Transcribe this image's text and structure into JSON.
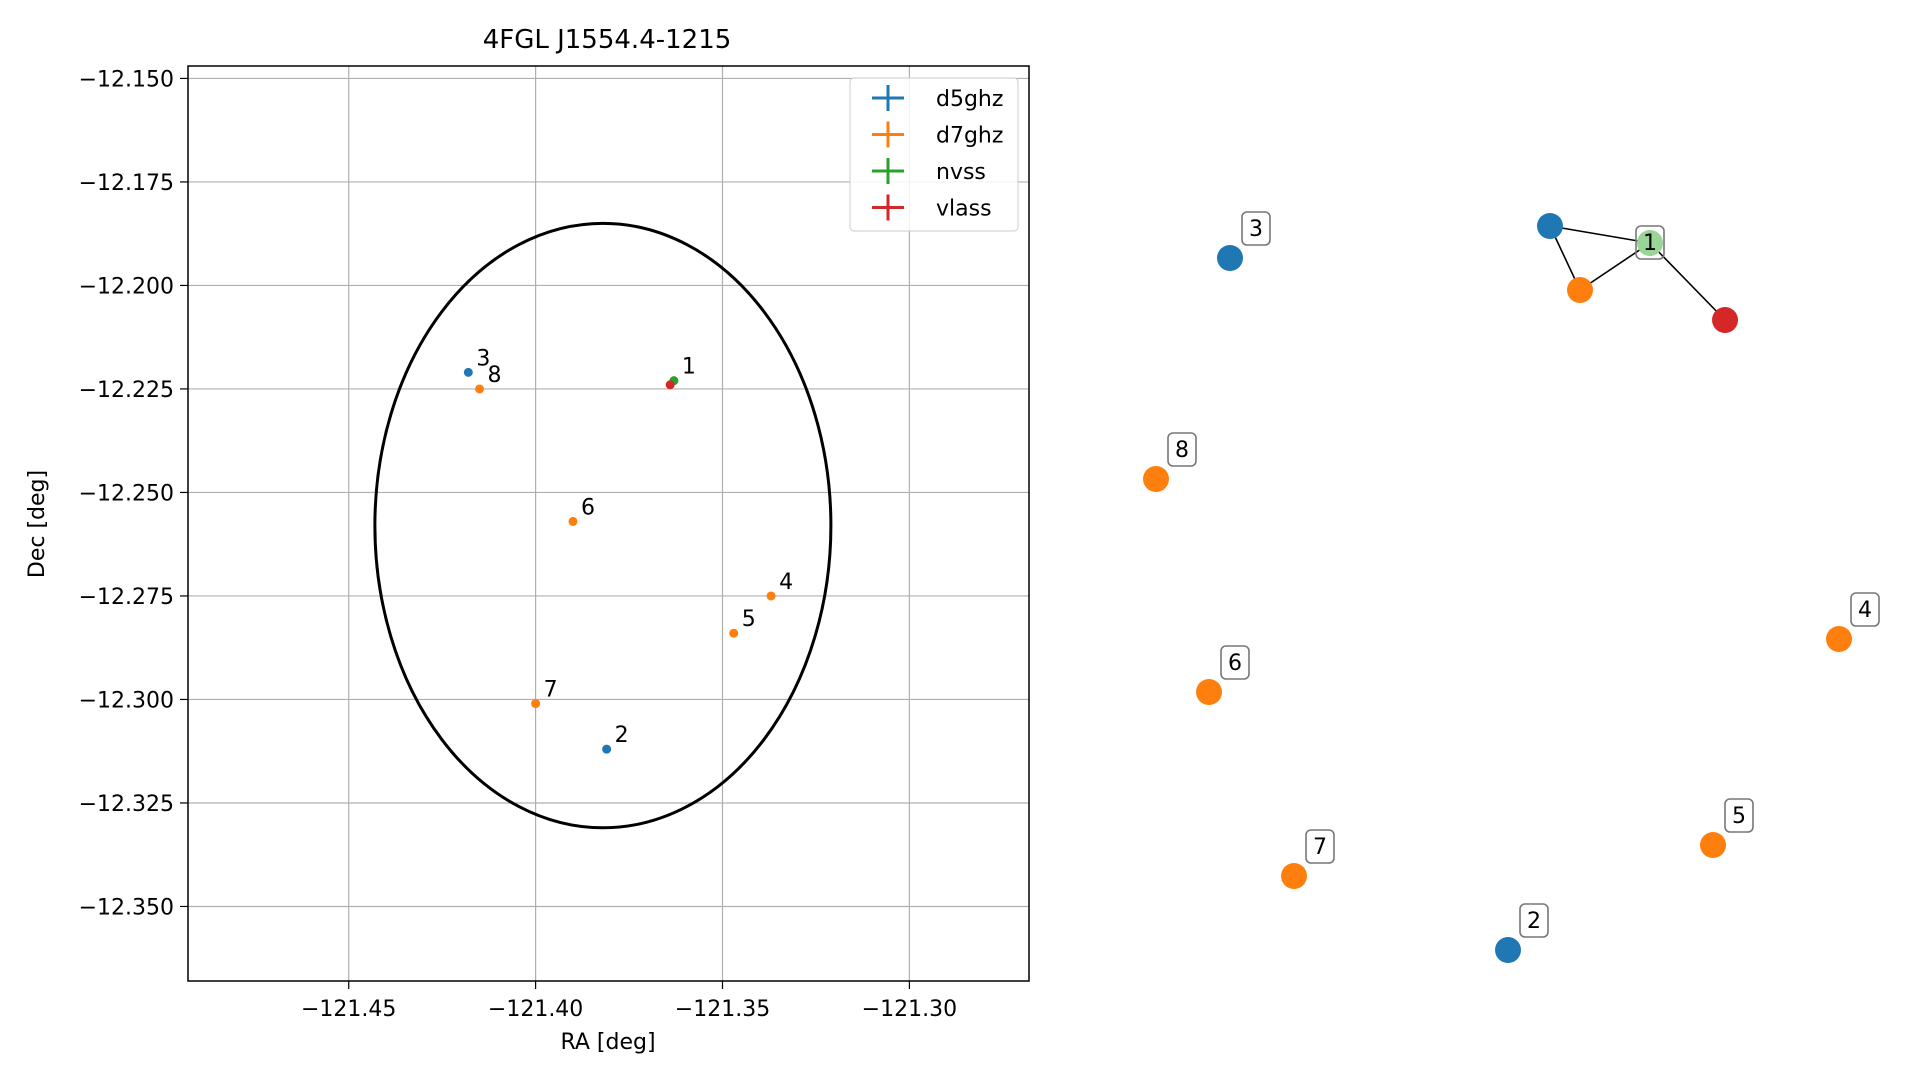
{
  "chart_data": [
    {
      "type": "scatter",
      "title": "4FGL J1554.4-1215",
      "xlabel": "RA [deg]",
      "ylabel": "Dec [deg]",
      "xlim": [
        -121.493,
        -121.268
      ],
      "ylim": [
        -12.368,
        -12.147
      ],
      "xticks": [
        -121.45,
        -121.4,
        -121.35,
        -121.3
      ],
      "xtick_labels": [
        "−121.45",
        "−121.40",
        "−121.35",
        "−121.30"
      ],
      "yticks": [
        -12.15,
        -12.175,
        -12.2,
        -12.225,
        -12.25,
        -12.275,
        -12.3,
        -12.325,
        -12.35
      ],
      "ytick_labels": [
        "−12.150",
        "−12.175",
        "−12.200",
        "−12.225",
        "−12.250",
        "−12.275",
        "−12.300",
        "−12.325",
        "−12.350"
      ],
      "grid": true,
      "legend_position": "top-right",
      "ellipse": {
        "center": [
          -121.382,
          -12.258
        ],
        "semi_axes": [
          0.061,
          0.073
        ],
        "color": "#000000"
      },
      "series": [
        {
          "name": "d5ghz",
          "color": "#1f77b4",
          "points": [
            {
              "label": "3",
              "x": -121.418,
              "y": -12.221
            },
            {
              "label": "2",
              "x": -121.381,
              "y": -12.312
            }
          ]
        },
        {
          "name": "d7ghz",
          "color": "#ff7f0e",
          "points": [
            {
              "label": "8",
              "x": -121.415,
              "y": -12.225
            },
            {
              "label": "6",
              "x": -121.39,
              "y": -12.257
            },
            {
              "label": "4",
              "x": -121.337,
              "y": -12.275
            },
            {
              "label": "5",
              "x": -121.347,
              "y": -12.284
            },
            {
              "label": "7",
              "x": -121.4,
              "y": -12.301
            }
          ]
        },
        {
          "name": "nvss",
          "color": "#2ca02c",
          "points": [
            {
              "label": "1",
              "x": -121.363,
              "y": -12.223
            }
          ]
        },
        {
          "name": "vlass",
          "color": "#d62728",
          "points": [
            {
              "label": "",
              "x": -121.364,
              "y": -12.224
            }
          ]
        }
      ]
    },
    {
      "type": "network",
      "node_label_box": {
        "fill": "#ffffff",
        "stroke": "#777777"
      },
      "nodes": [
        {
          "id": "n3",
          "label": "3",
          "color": "#1f77b4"
        },
        {
          "id": "n2",
          "label": "2",
          "color": "#1f77b4"
        },
        {
          "id": "n1",
          "label": "1",
          "color": "#98d596"
        },
        {
          "id": "n8",
          "label": "8",
          "color": "#ff7f0e"
        },
        {
          "id": "n6",
          "label": "6",
          "color": "#ff7f0e"
        },
        {
          "id": "n7",
          "label": "7",
          "color": "#ff7f0e"
        },
        {
          "id": "n4",
          "label": "4",
          "color": "#ff7f0e"
        },
        {
          "id": "n5",
          "label": "5",
          "color": "#ff7f0e"
        },
        {
          "id": "c_blue",
          "label": "",
          "color": "#1f77b4"
        },
        {
          "id": "c_orange",
          "label": "",
          "color": "#ff7f0e"
        },
        {
          "id": "c_red",
          "label": "",
          "color": "#d62728"
        }
      ],
      "edges": [
        [
          "c_blue",
          "n1"
        ],
        [
          "c_blue",
          "c_orange"
        ],
        [
          "c_orange",
          "n1"
        ],
        [
          "n1",
          "c_red"
        ]
      ]
    }
  ]
}
